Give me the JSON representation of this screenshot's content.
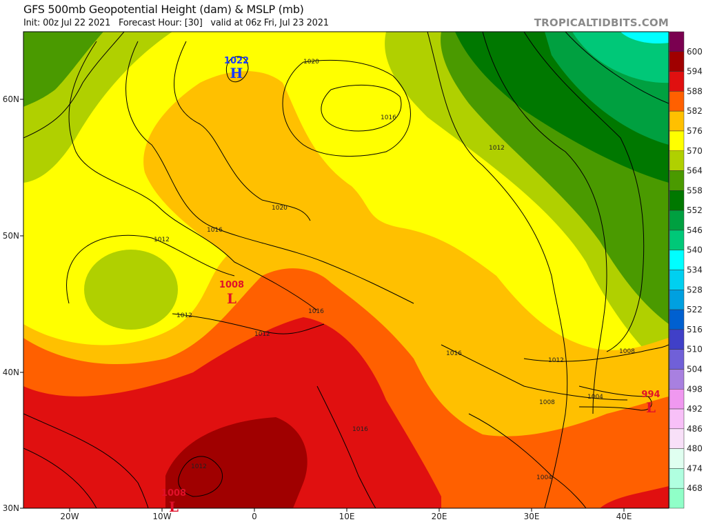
{
  "header": {
    "title": "GFS 500mb Geopotential Height (dam) & MSLP (mb)",
    "subtitle": "Init: 00z Jul 22 2021   Forecast Hour: [30]   valid at 06z Fri, Jul 23 2021",
    "watermark": "TROPICALTIDBITS.COM"
  },
  "axes": {
    "lon_labels": [
      "20W",
      "10W",
      "0",
      "10E",
      "20E",
      "30E",
      "40E"
    ],
    "lat_labels": [
      "60N",
      "50N",
      "40N",
      "30N"
    ]
  },
  "colorbar": {
    "labels": [
      "600",
      "594",
      "588",
      "582",
      "576",
      "570",
      "564",
      "558",
      "552",
      "546",
      "540",
      "534",
      "528",
      "522",
      "516",
      "510",
      "504",
      "498",
      "492",
      "486",
      "480",
      "474",
      "468"
    ],
    "colors": [
      "#7a0050",
      "#a00000",
      "#e01010",
      "#ff6000",
      "#ffc000",
      "#ffff00",
      "#b0d000",
      "#4a9a00",
      "#007800",
      "#00a040",
      "#00c878",
      "#00ffff",
      "#00d0f0",
      "#00a0e0",
      "#0060d0",
      "#4040c8",
      "#7060d8",
      "#a880e0",
      "#f098f0",
      "#f8c0f8",
      "#f8e0f8",
      "#e0fff0",
      "#b0ffe0",
      "#90ffc8"
    ]
  },
  "pressure_centers": [
    {
      "type": "H",
      "value": "1022",
      "color": "#1a3cff"
    },
    {
      "type": "L",
      "value": "1008",
      "color": "#e0102a"
    },
    {
      "type": "L",
      "value": "1008",
      "color": "#e0102a"
    },
    {
      "type": "L",
      "value": "994",
      "color": "#e0102a"
    }
  ],
  "isobar_labels": [
    "1020",
    "1016",
    "1012",
    "1020",
    "1016",
    "1012",
    "1012",
    "1016",
    "1012",
    "1016",
    "1012",
    "1008",
    "1004",
    "1008",
    "1016",
    "1012",
    "1004"
  ]
}
